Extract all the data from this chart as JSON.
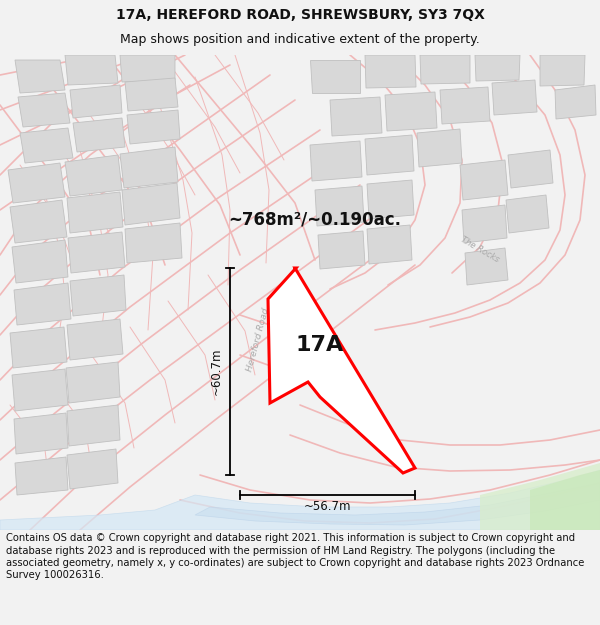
{
  "title_line1": "17A, HEREFORD ROAD, SHREWSBURY, SY3 7QX",
  "title_line2": "Map shows position and indicative extent of the property.",
  "area_label": "~768m²/~0.190ac.",
  "label_17A": "17A",
  "dim_vertical": "~60.7m",
  "dim_horizontal": "~56.7m",
  "road_label": "Hereford Road",
  "rocks_label": "The Rocks",
  "footer_text": "Contains OS data © Crown copyright and database right 2021. This information is subject to Crown copyright and database rights 2023 and is reproduced with the permission of HM Land Registry. The polygons (including the associated geometry, namely x, y co-ordinates) are subject to Crown copyright and database rights 2023 Ordnance Survey 100026316.",
  "bg_color": "#f2f2f2",
  "map_bg": "#ffffff",
  "plot_color_fill": "#ffffff",
  "plot_color_edge": "#ff0000",
  "street_color": "#f0b8b8",
  "building_fill": "#d8d8d8",
  "building_edge": "#c0c0c0",
  "water_color": "#cce0f0",
  "green_color": "#d8edcc",
  "title_fontsize": 10,
  "subtitle_fontsize": 9,
  "area_fontsize": 12,
  "label_fontsize": 16,
  "dim_fontsize": 8.5,
  "footer_fontsize": 7.2,
  "road_label_color": "#aaaaaa",
  "road_outline_color": "#e8a0a0",
  "road_fill_color": "#ffffff"
}
